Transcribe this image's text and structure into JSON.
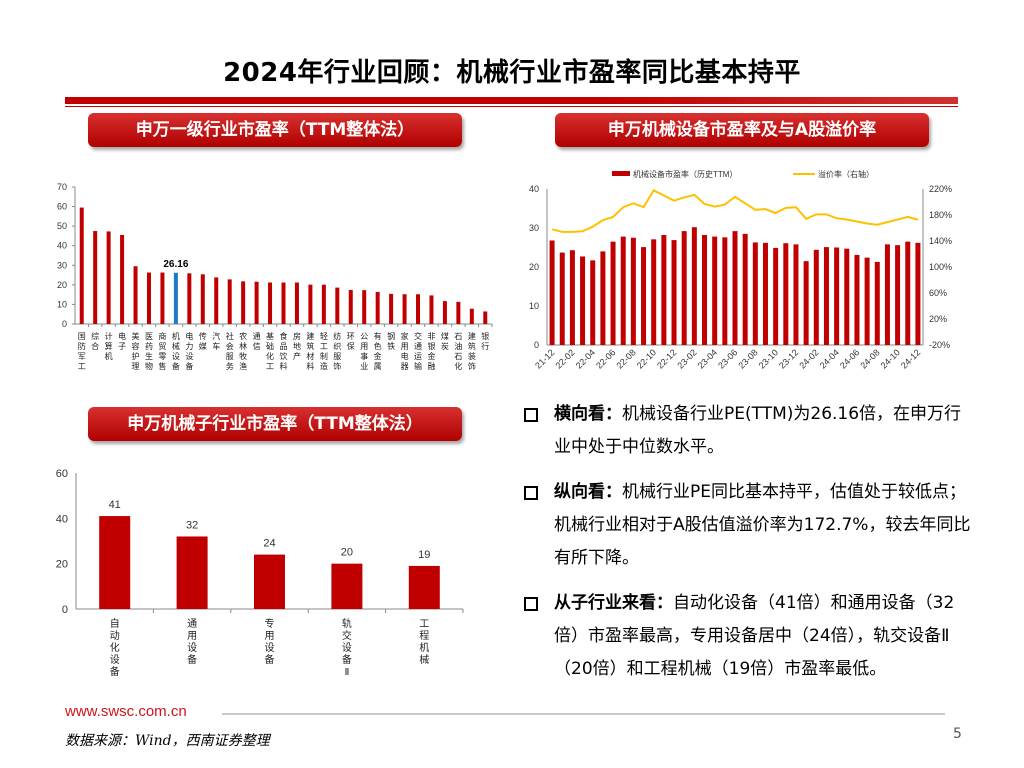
{
  "title": "2024年行业回顾：机械行业市盈率同比基本持平",
  "colors": {
    "accent": "#c00000",
    "highlight": "#1f78c8",
    "line": "#ffc000"
  },
  "sections": {
    "chart1_header": "申万一级行业市盈率（TTM整体法）",
    "chart2_header": "申万机械设备市盈率及与A股溢价率",
    "chart3_header": "申万机械子行业市盈率（TTM整体法）"
  },
  "chart_data": [
    {
      "type": "bar",
      "categories": [
        "国防军工",
        "综合",
        "计算机",
        "电子",
        "美容护理",
        "医药生物",
        "商贸零售",
        "机械设备",
        "电力设备",
        "传媒",
        "汽车",
        "社会服务",
        "农林牧渔",
        "通信",
        "基础化工",
        "食品饮料",
        "房地产",
        "建筑材料",
        "轻工制造",
        "纺织服饰",
        "环保",
        "公用事业",
        "有色金属",
        "钢铁",
        "家用电器",
        "交通运输",
        "非银金融",
        "煤炭",
        "石油石化",
        "建筑装饰",
        "银行"
      ],
      "values": [
        59.5,
        47.5,
        47.3,
        45.5,
        29.5,
        26.3,
        26.3,
        26.16,
        25.9,
        25.4,
        23.8,
        22.8,
        21.8,
        21.6,
        21.2,
        21.2,
        21.2,
        20.1,
        20.1,
        18.6,
        17.4,
        17.3,
        16.4,
        15.4,
        15.2,
        15.2,
        14.6,
        11.7,
        11.3,
        7.8,
        6.4
      ],
      "highlight_category": "机械设备",
      "data_label": "26.16",
      "ylim": [
        0,
        70
      ],
      "yticks": [
        0,
        10,
        20,
        30,
        40,
        50,
        60,
        70
      ]
    },
    {
      "type": "bar+line",
      "categories": [
        "21-12",
        "22-01",
        "22-02",
        "22-03",
        "22-04",
        "22-05",
        "22-06",
        "22-07",
        "22-08",
        "22-09",
        "22-10",
        "22-11",
        "22-12",
        "23-01",
        "23-02",
        "23-03",
        "23-04",
        "23-05",
        "23-06",
        "23-07",
        "23-08",
        "23-09",
        "23-10",
        "23-11",
        "23-12",
        "24-01",
        "24-02",
        "24-03",
        "24-04",
        "24-05",
        "24-06",
        "24-07",
        "24-08",
        "24-09",
        "24-10",
        "24-11",
        "24-12"
      ],
      "tick_labels": [
        "21-12",
        "22-02",
        "22-04",
        "22-06",
        "22-08",
        "22-10",
        "22-12",
        "23-02",
        "23-04",
        "23-06",
        "23-08",
        "23-10",
        "23-12",
        "24-02",
        "24-04",
        "24-06",
        "24-08",
        "24-10",
        "24-12"
      ],
      "series": [
        {
          "name": "机械设备市盈率（历史TTM）",
          "type": "bar",
          "axis": "left",
          "values": [
            26.8,
            23.7,
            24.3,
            22.7,
            21.7,
            24.0,
            26.5,
            27.8,
            27.5,
            25.1,
            27.1,
            28.2,
            26.9,
            29.2,
            30.2,
            28.2,
            27.8,
            27.6,
            29.2,
            28.5,
            26.3,
            26.2,
            24.9,
            26.1,
            25.8,
            21.5,
            24.4,
            25.1,
            25.0,
            24.7,
            23.1,
            22.4,
            21.3,
            25.8,
            25.6,
            26.5,
            26.2
          ]
        },
        {
          "name": "溢价率（右轴）",
          "type": "line",
          "axis": "right",
          "unit": "%",
          "values": [
            158,
            154,
            154,
            155,
            162,
            172,
            177,
            192,
            198,
            192,
            218,
            210,
            202,
            207,
            211,
            197,
            193,
            196,
            208,
            198,
            188,
            189,
            183,
            191,
            192,
            174,
            181,
            181,
            175,
            173,
            170,
            167,
            165,
            169,
            173,
            177,
            172.7
          ]
        }
      ],
      "ylim_left": [
        0,
        40
      ],
      "yticks_left": [
        0,
        10,
        20,
        30,
        40
      ],
      "ylim_right": [
        -20,
        220
      ],
      "yticks_right": [
        "-20%",
        "20%",
        "60%",
        "100%",
        "140%",
        "180%",
        "220%"
      ],
      "legend": "top"
    },
    {
      "type": "bar",
      "categories": [
        "自动化设备",
        "通用设备",
        "专用设备",
        "轨交设备Ⅱ",
        "工程机械"
      ],
      "values": [
        41,
        32,
        24,
        20,
        19
      ],
      "data_labels": [
        "41",
        "32",
        "24",
        "20",
        "19"
      ],
      "ylim": [
        0,
        60
      ],
      "yticks": [
        0,
        20,
        40,
        60
      ]
    }
  ],
  "bullets": [
    {
      "head": "横向看：",
      "body": "机械设备行业PE(TTM)为26.16倍，在申万行业中处于中位数水平。"
    },
    {
      "head": "纵向看：",
      "body": "机械行业PE同比基本持平，估值处于较低点；机械行业相对于A股估值溢价率为172.7%，较去年同比有所下降。"
    },
    {
      "head": "从子行业来看：",
      "body": "自动化设备（41倍）和通用设备（32倍）市盈率最高，专用设备居中（24倍），轨交设备Ⅱ（20倍）和工程机械（19倍）市盈率最低。"
    }
  ],
  "footer": {
    "site": "www.swsc.com.cn",
    "source": "数据来源：Wind，西南证券整理",
    "page": "5"
  }
}
